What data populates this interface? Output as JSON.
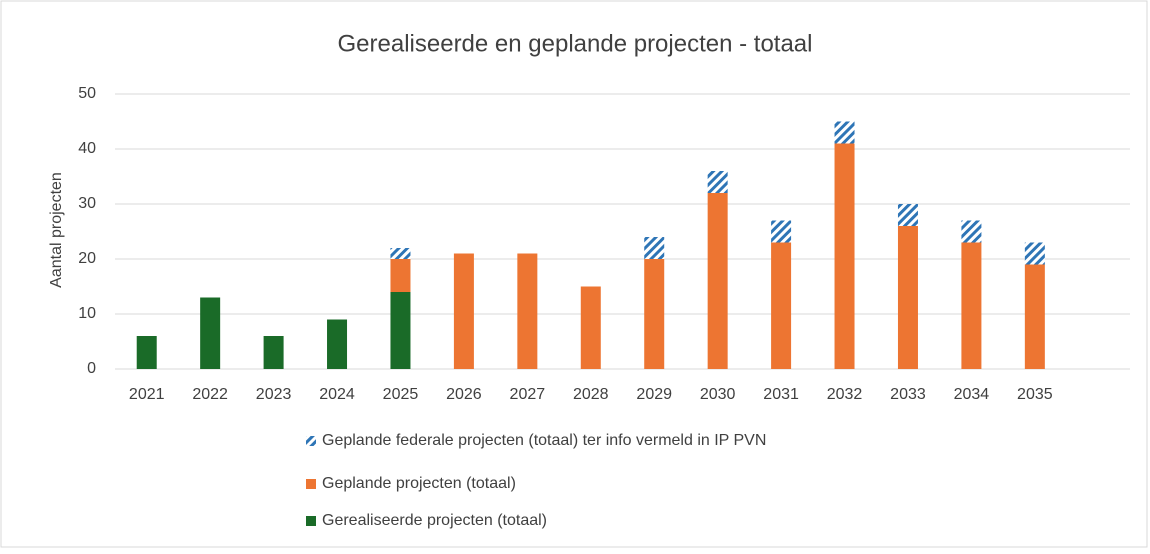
{
  "chart_data": {
    "type": "stacked_bar",
    "title": "Gerealiseerde en geplande projecten - totaal",
    "y_label": "Aantal projecten",
    "categories": [
      "2021",
      "2022",
      "2023",
      "2024",
      "2025",
      "2026",
      "2027",
      "2028",
      "2029",
      "2030",
      "2031",
      "2032",
      "2033",
      "2034",
      "2035",
      null
    ],
    "series": [
      {
        "name": "Gerealiseerde projecten (totaal)",
        "color": "#1a6b28",
        "values": [
          6,
          13,
          6,
          9,
          14,
          null,
          null,
          null,
          null,
          null,
          null,
          null,
          null,
          null,
          null,
          null
        ]
      },
      {
        "name": "Geplande projecten (totaal)",
        "color": "#ed7532",
        "values": [
          null,
          null,
          null,
          null,
          6,
          21,
          21,
          15,
          20,
          32,
          23,
          41,
          26,
          23,
          19,
          null
        ]
      },
      {
        "name": "Geplande federale projecten (totaal) ter info vermeld in IP PVN",
        "color": "#2e75b6",
        "hatch": true,
        "values": [
          null,
          null,
          null,
          null,
          2,
          null,
          null,
          null,
          4,
          4,
          4,
          4,
          4,
          4,
          4,
          null
        ]
      }
    ],
    "ylim": [
      0,
      50
    ],
    "yticks": [
      0,
      10,
      20,
      30,
      40,
      50
    ],
    "grid": true
  }
}
